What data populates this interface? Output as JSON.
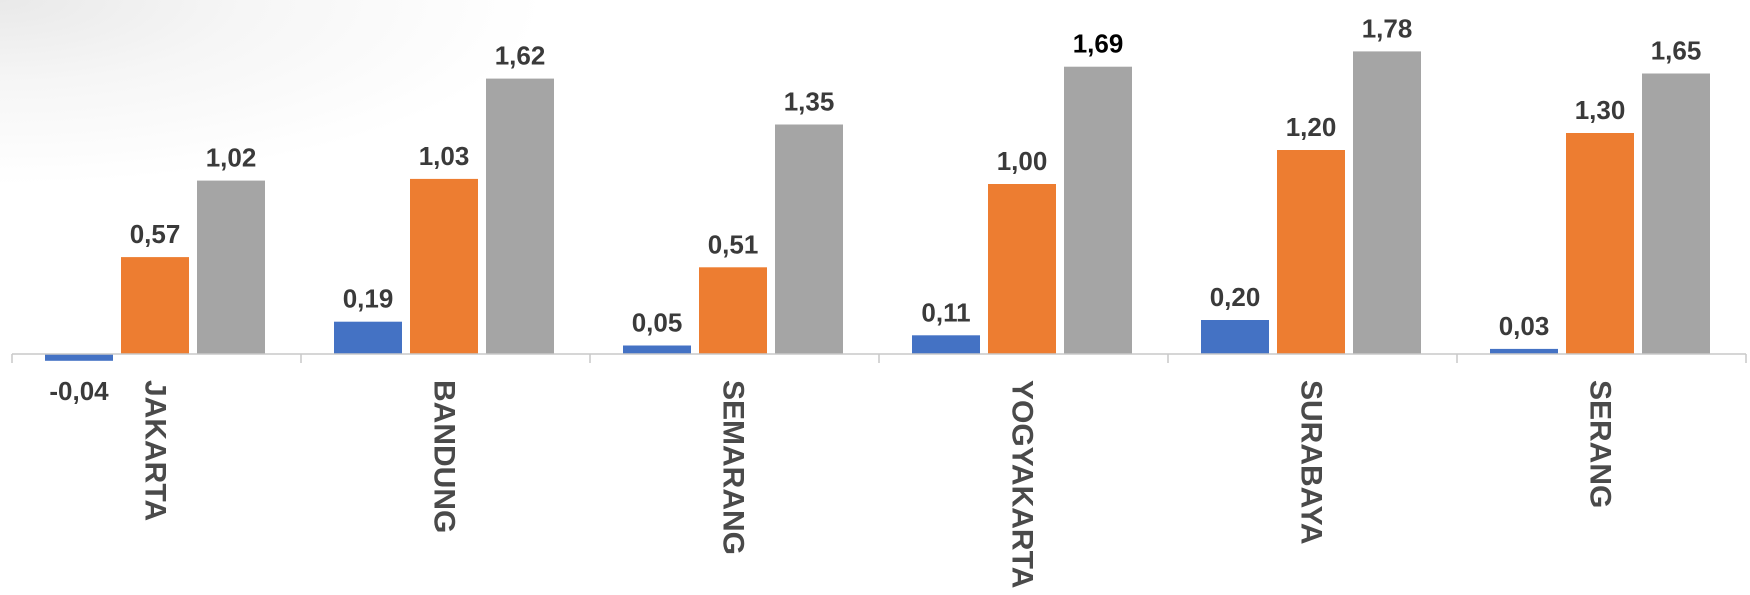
{
  "chart_data": {
    "type": "bar",
    "categories": [
      "JAKARTA",
      "BANDUNG",
      "SEMARANG",
      "YOGYAKARTA",
      "SURABAYA",
      "SERANG"
    ],
    "series": [
      {
        "color": "#4472C4",
        "values": [
          -0.04,
          0.19,
          0.05,
          0.11,
          0.2,
          0.03
        ],
        "labels": [
          "-0,04",
          "0,19",
          "0,05",
          "0,11",
          "0,20",
          "0,03"
        ]
      },
      {
        "color": "#ED7D31",
        "values": [
          0.57,
          1.03,
          0.51,
          1.0,
          1.2,
          1.3
        ],
        "labels": [
          "0,57",
          "1,03",
          "0,51",
          "1,00",
          "1,20",
          "1,30"
        ]
      },
      {
        "color": "#A5A5A5",
        "values": [
          1.02,
          1.62,
          1.35,
          1.69,
          1.78,
          1.65
        ],
        "labels": [
          "1,02",
          "1,62",
          "1,35",
          "1,69",
          "1,78",
          "1,65"
        ]
      }
    ],
    "title": "",
    "xlabel": "",
    "ylabel": "",
    "ylim": [
      -0.04,
      1.78
    ],
    "grid": false,
    "legend": "none",
    "category_label_orientation": "rotated-90-clockwise"
  }
}
